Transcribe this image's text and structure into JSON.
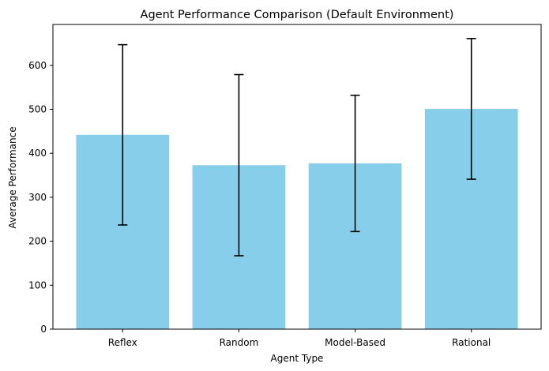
{
  "chart_data": {
    "type": "bar",
    "title": "Agent Performance Comparison (Default Environment)",
    "xlabel": "Agent Type",
    "ylabel": "Average Performance",
    "categories": [
      "Reflex",
      "Random",
      "Model-Based",
      "Rational"
    ],
    "values": [
      442,
      373,
      377,
      501
    ],
    "error": [
      205,
      206,
      155,
      160
    ],
    "ylim": [
      0,
      693
    ],
    "yticks": [
      0,
      100,
      200,
      300,
      400,
      500,
      600
    ],
    "grid": false,
    "colors": {
      "bar": "#87ceeb",
      "errorbar": "#000000",
      "axis": "#000000"
    }
  }
}
